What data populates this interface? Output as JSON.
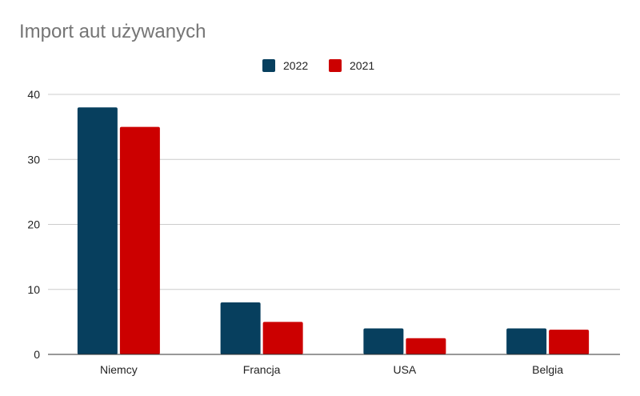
{
  "chart_data": {
    "type": "bar",
    "title": "Import aut używanych",
    "xlabel": "",
    "ylabel": "",
    "categories": [
      "Niemcy",
      "Francja",
      "USA",
      "Belgia"
    ],
    "series": [
      {
        "name": "2022",
        "color": "#073f5e",
        "values": [
          38,
          8,
          4,
          4
        ]
      },
      {
        "name": "2021",
        "color": "#cc0000",
        "values": [
          35,
          5,
          2.5,
          3.8
        ]
      }
    ],
    "ylim": [
      0,
      40
    ],
    "yticks": [
      0,
      10,
      20,
      30,
      40
    ],
    "grid": true,
    "legend_position": "top-center"
  }
}
